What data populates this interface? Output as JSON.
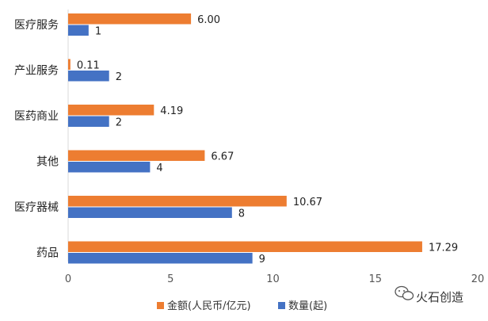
{
  "chart_data": {
    "type": "bar",
    "orientation": "horizontal",
    "categories": [
      "医疗服务",
      "产业服务",
      "医药商业",
      "其他",
      "医疗器械",
      "药品"
    ],
    "series": [
      {
        "name": "金额(人民币/亿元)",
        "values": [
          6.0,
          0.11,
          4.19,
          6.67,
          10.67,
          17.29
        ],
        "labels": [
          "6.00",
          "0.11",
          "4.19",
          "6.67",
          "10.67",
          "17.29"
        ],
        "color": "#ED7D31"
      },
      {
        "name": "数量(起)",
        "values": [
          1,
          2,
          2,
          4,
          8,
          9
        ],
        "labels": [
          "1",
          "2",
          "2",
          "4",
          "8",
          "9"
        ],
        "color": "#4472C4"
      }
    ],
    "xlim": [
      0,
      20
    ],
    "xticks": [
      "0",
      "5",
      "10",
      "15",
      "20"
    ],
    "grid": false,
    "legend_position": "bottom"
  },
  "watermark": {
    "text": "火石创造",
    "icon": "wechat-icon"
  }
}
